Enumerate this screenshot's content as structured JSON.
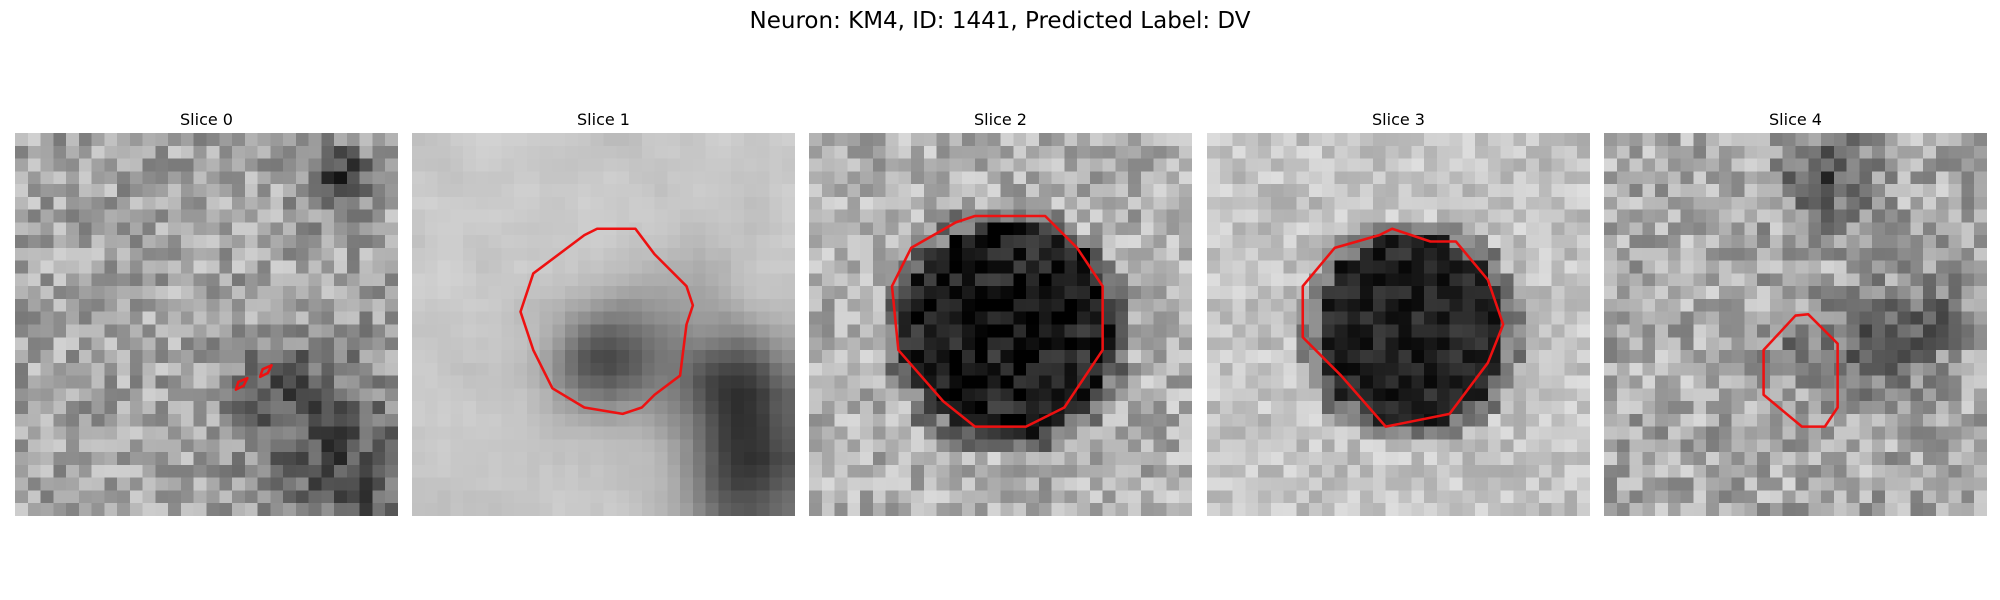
{
  "figure": {
    "suptitle": "Neuron: KM4, ID: 1441, Predicted Label: DV",
    "contour_color": "#ee1111"
  },
  "slices": [
    {
      "title": "Slice 0",
      "icon": "grayscale-noise-image"
    },
    {
      "title": "Slice 1",
      "icon": "grayscale-noise-image"
    },
    {
      "title": "Slice 2",
      "icon": "grayscale-noise-image"
    },
    {
      "title": "Slice 3",
      "icon": "grayscale-noise-image"
    },
    {
      "title": "Slice 4",
      "icon": "grayscale-noise-image"
    }
  ]
}
